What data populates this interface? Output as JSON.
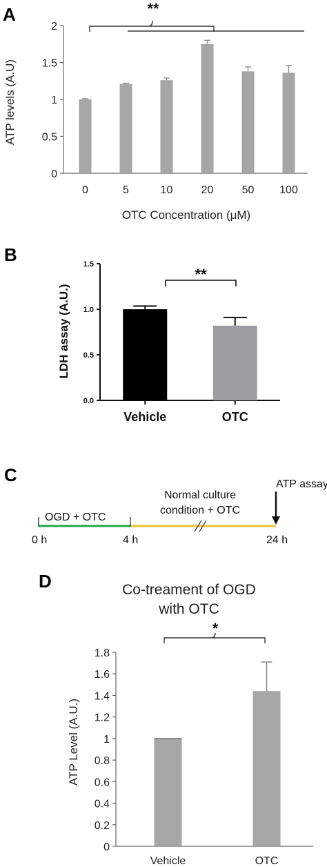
{
  "chart_data": [
    {
      "panel": "A",
      "type": "bar",
      "categories": [
        "0",
        "5",
        "10",
        "20",
        "50",
        "100"
      ],
      "values": [
        1.0,
        1.21,
        1.26,
        1.75,
        1.38,
        1.36
      ],
      "errors": [
        0.01,
        0.01,
        0.03,
        0.05,
        0.06,
        0.1
      ],
      "xlabel": "OTC Concentration (μM)",
      "ylabel": "ATP levels (A.U)",
      "ylim": [
        0,
        2
      ],
      "yticks": [
        "0",
        "0.5",
        "1",
        "1.5",
        "2"
      ],
      "significance": "**",
      "bar_color": "#a6a6a6"
    },
    {
      "panel": "B",
      "type": "bar",
      "categories": [
        "Vehicle",
        "OTC"
      ],
      "values": [
        1.0,
        0.82
      ],
      "errors": [
        0.035,
        0.09
      ],
      "ylabel": "LDH assay (A.U.)",
      "ylim": [
        0,
        1.5
      ],
      "yticks": [
        "0.0",
        "0.5",
        "1.0",
        "1.5"
      ],
      "significance": "**",
      "bar_colors": [
        "#000000",
        "#9d9da3"
      ]
    },
    {
      "panel": "D",
      "type": "bar",
      "title_lines": [
        "Co-treament of  OGD",
        "with OTC"
      ],
      "categories": [
        "Vehicle",
        "OTC"
      ],
      "values": [
        1.0,
        1.44
      ],
      "errors": [
        0.0,
        0.27
      ],
      "ylabel": "ATP Level (A.U.)",
      "ylim": [
        0,
        1.8
      ],
      "yticks": [
        "0",
        "0.2",
        "0.4",
        "0.6",
        "0.8",
        "1",
        "1.2",
        "1.4",
        "1.6",
        "1.8"
      ],
      "significance": "*",
      "bar_color": "#a6a6a6"
    }
  ],
  "timeline": {
    "panel": "C",
    "segment1_label": "OGD + OTC",
    "segment2_label_line1": "Normal culture",
    "segment2_label_line2": "condition + OTC",
    "assay_label": "ATP assay",
    "t0": "0 h",
    "t1": "4 h",
    "t2": "24 h",
    "segment1_color": "#1fa84a",
    "segment2_color": "#f2c12e"
  }
}
